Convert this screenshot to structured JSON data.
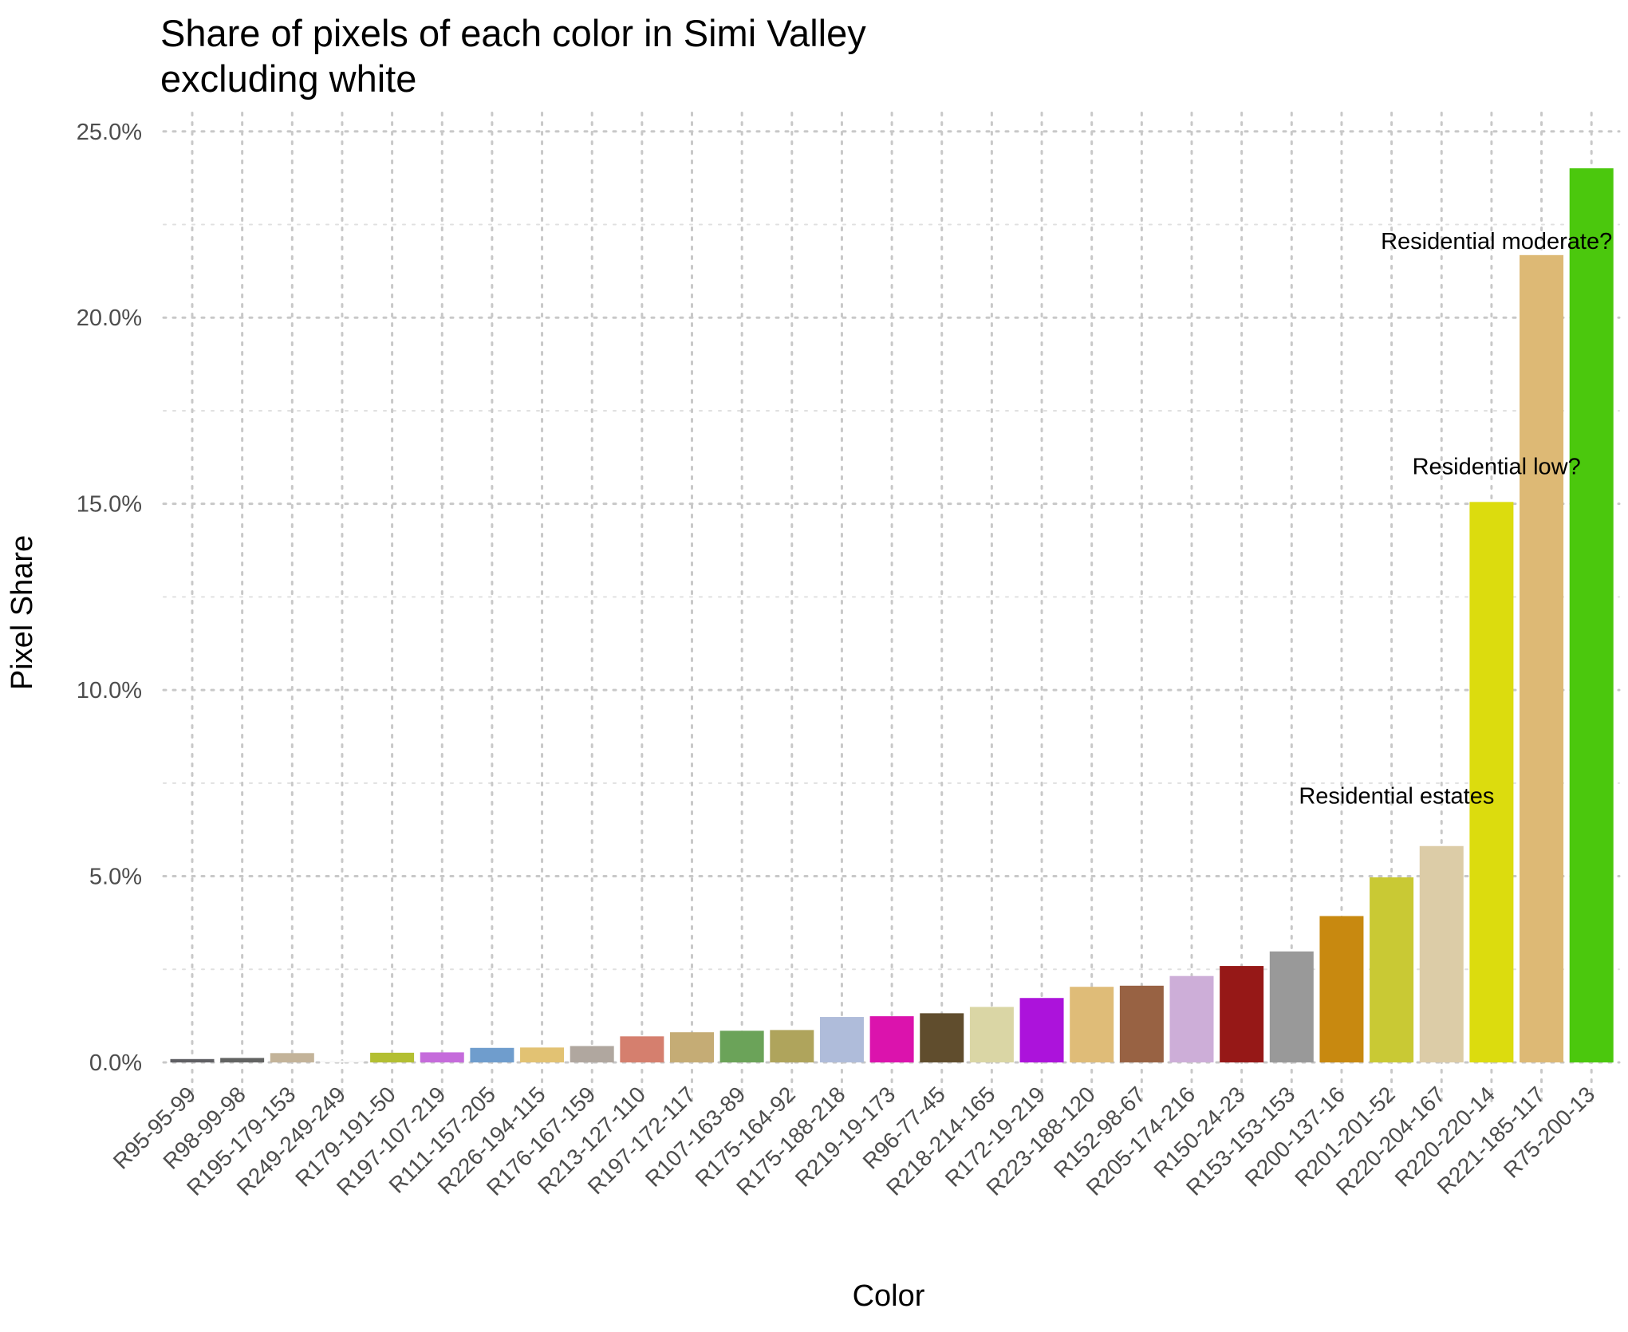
{
  "chart_data": {
    "type": "bar",
    "title": [
      "Share of pixels of each color in Simi Valley",
      "excluding white"
    ],
    "xlabel": "Color",
    "ylabel": "Pixel Share",
    "ylim": [
      -0.012,
      0.255
    ],
    "yticks": [
      0,
      0.05,
      0.1,
      0.15,
      0.2,
      0.25
    ],
    "ytick_labels": [
      "0.0%",
      "5.0%",
      "10.0%",
      "15.0%",
      "20.0%",
      "25.0%"
    ],
    "grid": true,
    "legend": "none",
    "categories": [
      "R95-95-99",
      "R98-99-98",
      "R195-179-153",
      "R249-249-249",
      "R179-191-50",
      "R197-107-219",
      "R111-157-205",
      "R226-194-115",
      "R176-167-159",
      "R213-127-110",
      "R197-172-117",
      "R107-163-89",
      "R175-164-92",
      "R175-188-218",
      "R219-19-173",
      "R96-77-45",
      "R218-214-165",
      "R172-19-219",
      "R223-188-120",
      "R152-98-67",
      "R205-174-216",
      "R150-24-23",
      "R153-153-153",
      "R200-137-16",
      "R201-201-52",
      "R220-204-167",
      "R220-220-14",
      "R221-185-117",
      "R75-200-13"
    ],
    "values": [
      0.0009,
      0.0012,
      0.0025,
      0.0005,
      0.0026,
      0.0027,
      0.0039,
      0.004,
      0.0044,
      0.007,
      0.0081,
      0.0085,
      0.0087,
      0.0122,
      0.0124,
      0.0132,
      0.0149,
      0.0173,
      0.0203,
      0.0206,
      0.0232,
      0.0259,
      0.0298,
      0.0393,
      0.0497,
      0.0581,
      0.1505,
      0.2168,
      0.2401
    ],
    "bar_colors": [
      "#5f5f63",
      "#626362",
      "#c3b399",
      "#f9f9f9",
      "#b3bf32",
      "#c56bdb",
      "#6f9dcd",
      "#e2c273",
      "#b0a79f",
      "#d57f6e",
      "#c5ac75",
      "#6ba359",
      "#afa45c",
      "#afbcda",
      "#db13ad",
      "#604d2d",
      "#dad6a5",
      "#ac13db",
      "#dfbc78",
      "#986243",
      "#cdaed8",
      "#961817",
      "#999999",
      "#c88910",
      "#c9c934",
      "#dccca7",
      "#dcdc0e",
      "#ddb975",
      "#4bc80d"
    ],
    "annotations": [
      {
        "text": "Residential moderate?",
        "x_index": 26.1,
        "y": 0.2185
      },
      {
        "text": "Residential low?",
        "x_index": 26.1,
        "y": 0.158
      },
      {
        "text": "Residential estates",
        "x_index": 24.1,
        "y": 0.0695
      }
    ]
  }
}
